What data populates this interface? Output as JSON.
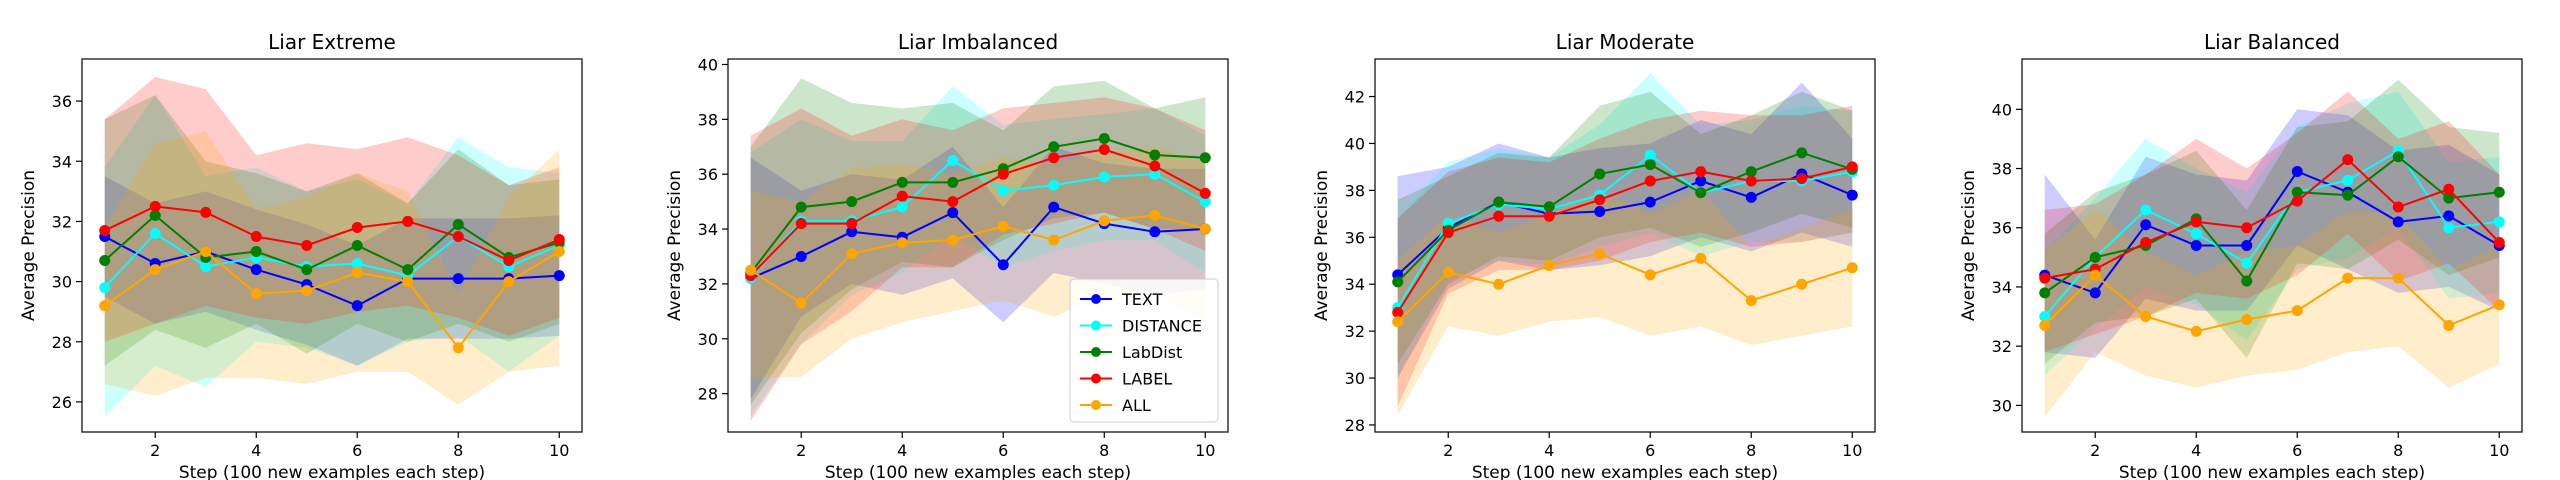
{
  "chart_data": [
    {
      "type": "line",
      "title": "Liar Extreme",
      "xlabel": "Step (100 new examples each step)",
      "ylabel": "Average Precision",
      "x": [
        1,
        2,
        3,
        4,
        5,
        6,
        7,
        8,
        9,
        10
      ],
      "xlim": [
        0.55,
        10.45
      ],
      "ylim": [
        25,
        37.4
      ],
      "xticks": [
        2,
        4,
        6,
        8,
        10
      ],
      "yticks": [
        26,
        28,
        30,
        32,
        34,
        36
      ],
      "legend": false,
      "series": [
        {
          "name": "TEXT",
          "values": [
            31.5,
            30.6,
            31.0,
            30.4,
            29.9,
            29.2,
            30.1,
            30.1,
            30.1,
            30.2
          ],
          "band_low": [
            29.5,
            28.6,
            29.0,
            28.4,
            27.9,
            27.2,
            28.1,
            28.1,
            28.1,
            28.2
          ],
          "band_high": [
            33.5,
            32.6,
            33.0,
            32.4,
            31.9,
            31.2,
            32.1,
            32.1,
            32.1,
            32.2
          ]
        },
        {
          "name": "DISTANCE",
          "values": [
            29.8,
            31.6,
            30.5,
            30.8,
            30.5,
            30.6,
            30.2,
            31.5,
            30.5,
            31.2
          ],
          "band_low": [
            25.5,
            27.2,
            26.5,
            28.0,
            27.8,
            27.2,
            28.0,
            28.2,
            27.0,
            28.2
          ],
          "band_high": [
            33.8,
            36.2,
            33.5,
            33.8,
            33.0,
            33.4,
            32.6,
            34.8,
            33.8,
            33.6
          ]
        },
        {
          "name": "LabDist",
          "values": [
            30.7,
            32.2,
            30.8,
            31.0,
            30.4,
            31.2,
            30.4,
            31.9,
            30.8,
            31.3
          ],
          "band_low": [
            27.2,
            28.4,
            27.8,
            28.6,
            27.6,
            28.6,
            28.0,
            28.6,
            28.0,
            28.6
          ],
          "band_high": [
            35.4,
            36.2,
            34.0,
            33.6,
            33.0,
            33.6,
            32.6,
            34.4,
            33.2,
            33.4
          ]
        },
        {
          "name": "LABEL",
          "values": [
            31.7,
            32.5,
            32.3,
            31.5,
            31.2,
            31.8,
            32.0,
            31.5,
            30.7,
            31.4
          ],
          "band_low": [
            28.0,
            28.6,
            29.2,
            28.8,
            28.6,
            29.0,
            29.2,
            28.8,
            28.2,
            28.8
          ],
          "band_high": [
            35.4,
            36.8,
            36.4,
            34.2,
            34.6,
            34.4,
            34.8,
            34.2,
            33.2,
            33.8
          ]
        },
        {
          "name": "ALL",
          "values": [
            29.2,
            30.4,
            31.0,
            29.6,
            29.7,
            30.3,
            30.0,
            27.8,
            30.0,
            31.0
          ],
          "band_low": [
            26.6,
            26.2,
            26.8,
            26.8,
            26.6,
            27.0,
            27.0,
            25.9,
            27.0,
            27.2
          ],
          "band_high": [
            31.8,
            34.6,
            35.0,
            32.4,
            32.8,
            33.6,
            33.0,
            29.6,
            32.8,
            34.4
          ]
        }
      ]
    },
    {
      "type": "line",
      "title": "Liar Imbalanced",
      "xlabel": "Step (100 new examples each step)",
      "ylabel": "Average Precision",
      "x": [
        1,
        2,
        3,
        4,
        5,
        6,
        7,
        8,
        9,
        10
      ],
      "xlim": [
        0.55,
        10.45
      ],
      "ylim": [
        26.6,
        40.2
      ],
      "xticks": [
        2,
        4,
        6,
        8,
        10
      ],
      "yticks": [
        28,
        30,
        32,
        34,
        36,
        38,
        40
      ],
      "legend": true,
      "legend_position": "lower right",
      "series": [
        {
          "name": "TEXT",
          "values": [
            32.2,
            33.0,
            33.9,
            33.7,
            34.6,
            32.7,
            34.8,
            34.2,
            33.9,
            34.0
          ],
          "band_low": [
            27.8,
            30.8,
            32.0,
            31.6,
            32.2,
            30.6,
            32.4,
            32.0,
            31.6,
            31.8
          ],
          "band_high": [
            36.6,
            35.4,
            36.0,
            35.8,
            37.0,
            34.8,
            37.0,
            36.4,
            36.2,
            36.2
          ]
        },
        {
          "name": "DISTANCE",
          "values": [
            32.2,
            34.3,
            34.3,
            34.8,
            36.5,
            35.4,
            35.6,
            35.9,
            36.0,
            35.0
          ],
          "band_low": [
            27.2,
            29.8,
            31.6,
            32.4,
            33.8,
            32.6,
            33.2,
            33.6,
            33.6,
            32.4
          ],
          "band_high": [
            36.8,
            38.0,
            37.2,
            37.2,
            39.2,
            37.8,
            38.0,
            38.2,
            38.4,
            37.4
          ]
        },
        {
          "name": "LabDist",
          "values": [
            32.4,
            34.8,
            35.0,
            35.7,
            35.7,
            36.2,
            37.0,
            37.3,
            36.7,
            36.6
          ],
          "band_low": [
            27.6,
            30.2,
            31.8,
            32.8,
            32.6,
            33.6,
            34.4,
            34.6,
            34.0,
            34.0
          ],
          "band_high": [
            37.0,
            39.5,
            38.6,
            38.4,
            38.6,
            37.6,
            39.2,
            39.4,
            38.4,
            38.8
          ]
        },
        {
          "name": "LABEL",
          "values": [
            32.3,
            34.2,
            34.2,
            35.2,
            35.0,
            36.0,
            36.6,
            36.9,
            36.3,
            35.3
          ],
          "band_low": [
            27.0,
            29.8,
            31.0,
            32.6,
            32.6,
            33.8,
            34.2,
            34.6,
            34.0,
            33.2
          ],
          "band_high": [
            37.4,
            38.4,
            37.4,
            38.0,
            37.6,
            38.4,
            38.6,
            38.8,
            38.4,
            37.6
          ]
        },
        {
          "name": "ALL",
          "values": [
            32.5,
            31.3,
            33.1,
            33.5,
            33.6,
            34.1,
            33.6,
            34.3,
            34.5,
            34.0
          ],
          "band_low": [
            28.6,
            28.6,
            30.0,
            30.6,
            31.0,
            31.4,
            30.8,
            31.6,
            31.6,
            30.6
          ],
          "band_high": [
            35.4,
            35.0,
            36.2,
            36.4,
            36.0,
            36.6,
            36.4,
            36.8,
            37.0,
            36.4
          ]
        }
      ]
    },
    {
      "type": "line",
      "title": "Liar Moderate",
      "xlabel": "Step (100 new examples each step)",
      "ylabel": "Average Precision",
      "x": [
        1,
        2,
        3,
        4,
        5,
        6,
        7,
        8,
        9,
        10
      ],
      "xlim": [
        0.55,
        10.45
      ],
      "ylim": [
        27.7,
        43.6
      ],
      "xticks": [
        2,
        4,
        6,
        8,
        10
      ],
      "yticks": [
        28,
        30,
        32,
        34,
        36,
        38,
        40,
        42
      ],
      "legend": false,
      "series": [
        {
          "name": "TEXT",
          "values": [
            34.4,
            36.4,
            37.5,
            37.0,
            37.1,
            37.5,
            38.4,
            37.7,
            38.7,
            37.8
          ],
          "band_low": [
            30.0,
            33.8,
            35.0,
            34.6,
            34.8,
            35.2,
            36.0,
            35.4,
            36.2,
            35.6
          ],
          "band_high": [
            38.6,
            39.0,
            40.0,
            39.4,
            39.8,
            40.0,
            41.0,
            40.4,
            42.6,
            40.2
          ]
        },
        {
          "name": "DISTANCE",
          "values": [
            33.0,
            36.6,
            37.4,
            37.2,
            37.8,
            39.5,
            37.9,
            38.4,
            38.4,
            38.8
          ],
          "band_low": [
            30.0,
            34.2,
            35.0,
            34.8,
            35.6,
            36.2,
            35.2,
            35.8,
            35.8,
            36.2
          ],
          "band_high": [
            36.8,
            39.2,
            39.8,
            39.4,
            40.8,
            43.0,
            40.8,
            41.0,
            41.6,
            41.4
          ]
        },
        {
          "name": "LabDist",
          "values": [
            34.1,
            36.3,
            37.5,
            37.3,
            38.7,
            39.1,
            37.9,
            38.8,
            39.6,
            38.9
          ],
          "band_low": [
            30.6,
            34.0,
            35.2,
            35.0,
            36.0,
            36.4,
            35.6,
            36.2,
            37.0,
            36.4
          ],
          "band_high": [
            37.6,
            38.6,
            39.6,
            39.4,
            41.6,
            42.2,
            40.4,
            41.2,
            42.2,
            41.4
          ]
        },
        {
          "name": "LABEL",
          "values": [
            32.8,
            36.2,
            36.9,
            36.9,
            37.6,
            38.4,
            38.8,
            38.4,
            38.5,
            39.0
          ],
          "band_low": [
            28.8,
            33.6,
            34.6,
            34.6,
            35.0,
            35.8,
            36.2,
            35.6,
            35.8,
            36.2
          ],
          "band_high": [
            36.8,
            38.8,
            39.4,
            39.2,
            40.2,
            41.0,
            41.4,
            41.2,
            41.2,
            41.6
          ]
        },
        {
          "name": "ALL",
          "values": [
            32.4,
            34.5,
            34.0,
            34.8,
            35.3,
            34.4,
            35.1,
            33.3,
            34.0,
            34.7
          ],
          "band_low": [
            28.4,
            32.2,
            31.8,
            32.4,
            32.6,
            31.8,
            32.2,
            31.4,
            31.8,
            32.2
          ],
          "band_high": [
            35.0,
            37.0,
            36.2,
            37.0,
            38.0,
            37.0,
            38.0,
            35.6,
            36.4,
            37.2
          ]
        }
      ]
    },
    {
      "type": "line",
      "title": "Liar Balanced",
      "xlabel": "Step (100 new examples each step)",
      "ylabel": "Average Precision",
      "x": [
        1,
        2,
        3,
        4,
        5,
        6,
        7,
        8,
        9,
        10
      ],
      "xlim": [
        0.55,
        10.45
      ],
      "ylim": [
        29.1,
        41.7
      ],
      "xticks": [
        2,
        4,
        6,
        8,
        10
      ],
      "yticks": [
        30,
        32,
        34,
        36,
        38,
        40
      ],
      "legend": false,
      "series": [
        {
          "name": "TEXT",
          "values": [
            34.4,
            33.8,
            36.1,
            35.4,
            35.4,
            37.9,
            37.2,
            36.2,
            36.4,
            35.4
          ],
          "band_low": [
            31.8,
            31.6,
            33.6,
            33.2,
            33.2,
            35.4,
            34.6,
            33.8,
            34.0,
            33.2
          ],
          "band_high": [
            37.8,
            35.6,
            38.4,
            37.8,
            37.6,
            40.0,
            39.8,
            38.6,
            38.8,
            37.8
          ]
        },
        {
          "name": "DISTANCE",
          "values": [
            33.0,
            35.0,
            36.6,
            35.8,
            34.8,
            37.2,
            37.6,
            38.6,
            36.0,
            36.2
          ],
          "band_low": [
            31.0,
            32.6,
            34.0,
            33.4,
            32.2,
            34.6,
            35.0,
            36.0,
            33.6,
            33.8
          ],
          "band_high": [
            35.2,
            37.0,
            39.0,
            38.0,
            37.2,
            39.4,
            40.2,
            40.6,
            38.2,
            38.4
          ]
        },
        {
          "name": "LabDist",
          "values": [
            33.8,
            35.0,
            35.4,
            36.3,
            34.2,
            37.2,
            37.1,
            38.4,
            37.0,
            37.2
          ],
          "band_low": [
            31.4,
            32.8,
            33.0,
            33.6,
            31.6,
            34.8,
            34.6,
            35.6,
            34.4,
            35.0
          ],
          "band_high": [
            35.8,
            37.2,
            37.8,
            38.6,
            36.6,
            39.4,
            39.6,
            41.0,
            39.4,
            39.2
          ]
        },
        {
          "name": "LABEL",
          "values": [
            34.3,
            34.6,
            35.5,
            36.2,
            36.0,
            36.9,
            38.3,
            36.7,
            37.3,
            35.5
          ],
          "band_low": [
            31.8,
            32.4,
            33.0,
            33.8,
            33.6,
            34.4,
            35.8,
            34.2,
            34.8,
            33.2
          ],
          "band_high": [
            36.6,
            36.8,
            37.8,
            39.0,
            38.0,
            39.2,
            40.6,
            39.0,
            39.6,
            37.8
          ]
        },
        {
          "name": "ALL",
          "values": [
            32.7,
            34.4,
            33.0,
            32.5,
            32.9,
            33.2,
            34.3,
            34.3,
            32.7,
            33.4
          ],
          "band_low": [
            29.6,
            31.8,
            31.0,
            30.6,
            31.0,
            31.2,
            31.8,
            32.0,
            30.6,
            31.4
          ],
          "band_high": [
            35.2,
            36.6,
            35.2,
            34.4,
            35.2,
            35.4,
            36.6,
            36.4,
            34.6,
            35.4
          ]
        }
      ]
    }
  ],
  "colors": {
    "TEXT": "#0000ff",
    "DISTANCE": "#00ffff",
    "LabDist": "#008000",
    "LABEL": "#ff0000",
    "ALL": "#ffa500"
  }
}
